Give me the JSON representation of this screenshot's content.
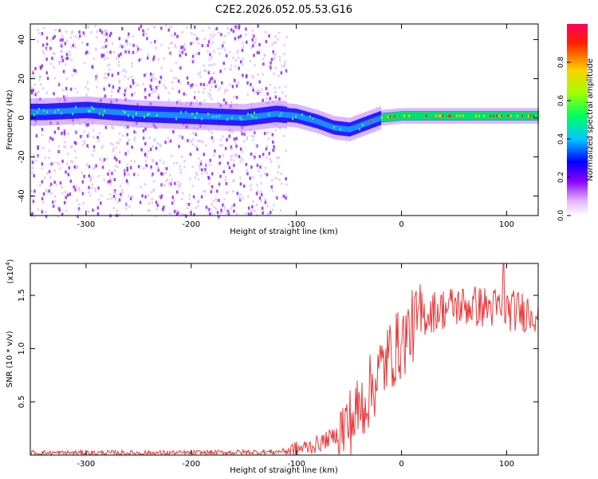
{
  "figure": {
    "title": "C2E2.2026.052.05.53.G16"
  },
  "chart_data": [
    {
      "type": "heatmap",
      "title": "C2E2.2026.052.05.53.G16",
      "xlabel": "Height of straight line (km)",
      "ylabel": "Frequency (Hz)",
      "xlim": [
        -353,
        130
      ],
      "ylim": [
        -50,
        48
      ],
      "xticks": [
        -300,
        -200,
        -100,
        0,
        100
      ],
      "yticks": [
        -40,
        -20,
        0,
        20,
        40
      ],
      "band_center": [
        {
          "x": -340,
          "f": 3
        },
        {
          "x": -300,
          "f": 4
        },
        {
          "x": -250,
          "f": 2
        },
        {
          "x": -200,
          "f": 1
        },
        {
          "x": -150,
          "f": 0
        },
        {
          "x": -120,
          "f": 2
        },
        {
          "x": -100,
          "f": 1
        },
        {
          "x": -80,
          "f": -2
        },
        {
          "x": -65,
          "f": -5
        },
        {
          "x": -50,
          "f": -6
        },
        {
          "x": -35,
          "f": -3
        },
        {
          "x": -20,
          "f": 0
        },
        {
          "x": 0,
          "f": 1
        },
        {
          "x": 50,
          "f": 1
        },
        {
          "x": 130,
          "f": 1
        }
      ],
      "scatter_extent_x": [
        -353,
        -110
      ],
      "colorbar": {
        "label": "Normalized spectral amplitude",
        "range": [
          0.0,
          1.0
        ],
        "ticks": [
          0.0,
          0.2,
          0.4,
          0.6,
          0.8
        ],
        "tick_labels": [
          "0.0",
          "0.2",
          "0.4",
          "0.6",
          "0.8"
        ]
      },
      "tick_labels": [
        "-300",
        "-200",
        "-100",
        "0",
        "100"
      ],
      "ytick_labels": [
        "-40",
        "-20",
        "0",
        "20",
        "40"
      ]
    },
    {
      "type": "line",
      "xlabel": "Height of straight line (km)",
      "ylabel": "SNR (10 * v/v)",
      "scale_note": "(x10",
      "scale_exp": "4",
      "scale_close": ")",
      "xlim": [
        -353,
        130
      ],
      "ylim": [
        0,
        1.8
      ],
      "xticks": [
        -300,
        -200,
        -100,
        0,
        100
      ],
      "tick_labels": [
        "-300",
        "-200",
        "-100",
        "0",
        "100"
      ],
      "yticks": [
        0.5,
        1.0,
        1.5
      ],
      "ytick_labels": [
        "0.5",
        "1.0",
        "1.5"
      ],
      "series": [
        {
          "name": "SNR",
          "color": "#e8393a",
          "trend": [
            {
              "x": -353,
              "y": 0.02
            },
            {
              "x": -200,
              "y": 0.02
            },
            {
              "x": -120,
              "y": 0.03
            },
            {
              "x": -100,
              "y": 0.05
            },
            {
              "x": -80,
              "y": 0.1
            },
            {
              "x": -60,
              "y": 0.2
            },
            {
              "x": -45,
              "y": 0.35
            },
            {
              "x": -30,
              "y": 0.6
            },
            {
              "x": -20,
              "y": 0.8
            },
            {
              "x": -10,
              "y": 0.95
            },
            {
              "x": 0,
              "y": 1.05
            },
            {
              "x": 10,
              "y": 1.2
            },
            {
              "x": 20,
              "y": 1.3
            },
            {
              "x": 30,
              "y": 1.35
            },
            {
              "x": 50,
              "y": 1.4
            },
            {
              "x": 70,
              "y": 1.4
            },
            {
              "x": 90,
              "y": 1.38
            },
            {
              "x": 110,
              "y": 1.35
            },
            {
              "x": 130,
              "y": 1.35
            }
          ],
          "peak": {
            "x": 97,
            "y": 1.8
          }
        }
      ]
    }
  ]
}
